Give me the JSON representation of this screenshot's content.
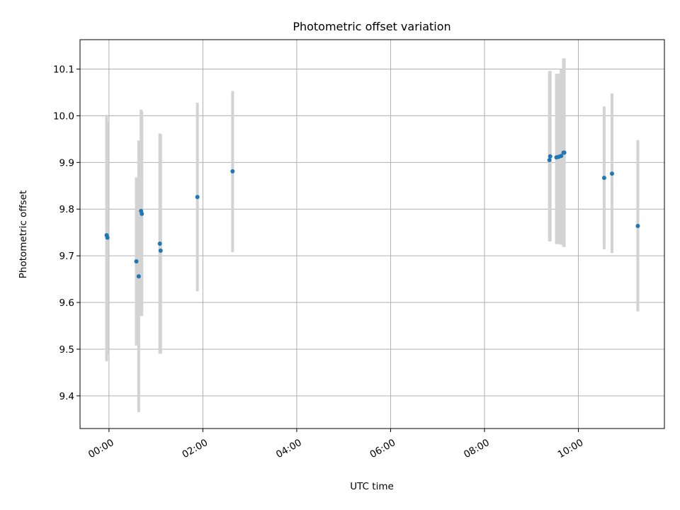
{
  "chart_data": {
    "type": "scatter",
    "title": "Photometric offset variation",
    "xlabel": "UTC time",
    "ylabel": "Photometric offset",
    "xlim": [
      "23:23",
      "11:50"
    ],
    "ylim": [
      9.33,
      10.163
    ],
    "grid": true,
    "x_ticks": [
      "00:00",
      "02:00",
      "04:00",
      "06:00",
      "08:00",
      "10:00"
    ],
    "y_ticks": [
      9.4,
      9.5,
      9.6,
      9.7,
      9.8,
      9.9,
      10.0,
      10.1
    ],
    "marker_color": "#1f77b4",
    "errorbar_color": "#d3d3d3",
    "points": [
      {
        "x": "23:57",
        "y": 9.744,
        "lo": 9.474,
        "hi": 10.002
      },
      {
        "x": "23:58",
        "y": 9.739,
        "lo": 9.49,
        "hi": 9.987
      },
      {
        "x": "00:35",
        "y": 9.688,
        "lo": 9.508,
        "hi": 9.868
      },
      {
        "x": "00:38",
        "y": 9.656,
        "lo": 9.365,
        "hi": 9.947
      },
      {
        "x": "00:41",
        "y": 9.796,
        "lo": 9.571,
        "hi": 10.013
      },
      {
        "x": "00:42",
        "y": 9.79,
        "lo": 9.571,
        "hi": 10.01
      },
      {
        "x": "01:05",
        "y": 9.726,
        "lo": 9.49,
        "hi": 9.962
      },
      {
        "x": "01:06",
        "y": 9.711,
        "lo": 9.49,
        "hi": 9.96
      },
      {
        "x": "01:53",
        "y": 9.826,
        "lo": 9.624,
        "hi": 10.028
      },
      {
        "x": "02:38",
        "y": 9.881,
        "lo": 9.708,
        "hi": 10.053
      },
      {
        "x": "09:23",
        "y": 9.905,
        "lo": 9.731,
        "hi": 10.096
      },
      {
        "x": "09:24",
        "y": 9.913,
        "lo": 9.731,
        "hi": 10.096
      },
      {
        "x": "09:32",
        "y": 9.911,
        "lo": 9.725,
        "hi": 10.09
      },
      {
        "x": "09:35",
        "y": 9.912,
        "lo": 9.725,
        "hi": 10.09
      },
      {
        "x": "09:38",
        "y": 9.914,
        "lo": 9.724,
        "hi": 10.1
      },
      {
        "x": "09:41",
        "y": 9.921,
        "lo": 9.719,
        "hi": 10.123
      },
      {
        "x": "09:42",
        "y": 9.921,
        "lo": 9.719,
        "hi": 10.123
      },
      {
        "x": "10:33",
        "y": 9.867,
        "lo": 9.714,
        "hi": 10.02
      },
      {
        "x": "10:43",
        "y": 9.876,
        "lo": 9.706,
        "hi": 10.048
      },
      {
        "x": "11:16",
        "y": 9.764,
        "lo": 9.581,
        "hi": 9.948
      }
    ]
  }
}
